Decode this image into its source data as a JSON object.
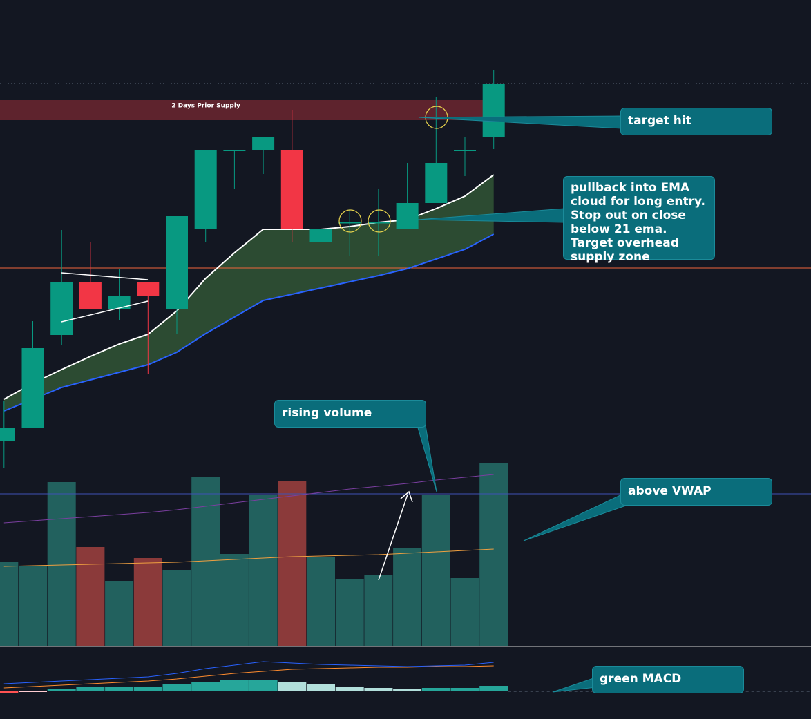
{
  "chart_data": [
    {
      "type": "candlestick",
      "open": [
        6.2,
        8.0,
        21.5,
        29.2,
        25.3,
        29.2,
        25.3,
        36.8,
        48.3,
        48.3,
        48.3,
        34.9,
        37.8,
        37.8,
        36.8,
        40.6,
        48.3,
        50.2
      ],
      "high": [
        12.0,
        23.5,
        36.7,
        34.9,
        31.0,
        29.2,
        38.7,
        48.3,
        48.3,
        50.2,
        54.1,
        42.7,
        39.7,
        42.7,
        46.4,
        56.0,
        50.2,
        59.8
      ],
      "low": [
        2.2,
        8.0,
        20.0,
        25.3,
        23.7,
        15.8,
        21.6,
        35.0,
        42.7,
        44.8,
        35.0,
        33.0,
        33.0,
        33.0,
        36.8,
        40.6,
        44.5,
        48.4
      ],
      "close": [
        8.0,
        19.6,
        29.2,
        25.3,
        27.1,
        27.1,
        38.7,
        48.3,
        48.3,
        50.2,
        36.8,
        36.8,
        37.8,
        37.8,
        40.6,
        46.4,
        48.3,
        57.9
      ],
      "up_color": "#089981",
      "down_color": "#f23645",
      "ylim": [
        0,
        70
      ],
      "series": [
        {
          "color": "#ffffff",
          "values": [
            12.2,
            14.5,
            16.5,
            18.4,
            20.2,
            21.6,
            25.0,
            29.7,
            33.4,
            36.8,
            36.8,
            36.8,
            37.2,
            37.8,
            38.2,
            39.8,
            41.6,
            44.7
          ]
        },
        {
          "color": "#2962ff",
          "values": [
            10.5,
            12.2,
            13.9,
            15.0,
            16.1,
            17.2,
            19.0,
            21.7,
            24.1,
            26.5,
            27.4,
            28.3,
            29.2,
            30.1,
            31.1,
            32.5,
            33.9,
            36.1
          ]
        }
      ],
      "cloud_color": "rgba(76,140,70,0.45)",
      "zones": [
        {
          "label": "2 Days Prior Supply",
          "range": [
            52.6,
            55.5
          ],
          "color": "rgba(120,40,50,0.75)"
        }
      ],
      "hlines": [
        {
          "value": 31.2,
          "color": "#f0643c",
          "style": "solid"
        },
        {
          "value": 57.9,
          "color": "#5d6a7a",
          "style": "dotted"
        }
      ],
      "annotations": [
        "target hit",
        "pullback into EMA cloud for long entry. Stop out on close below 21 ema. Target overhead supply zone"
      ]
    },
    {
      "type": "bar",
      "values": [
        121,
        115,
        237,
        143,
        94,
        127,
        110,
        245,
        133,
        219,
        238,
        128,
        97,
        103,
        141,
        218,
        98,
        265
      ],
      "up_color": "#22615e",
      "down_color": "#8b3a3a",
      "ylim": [
        0,
        300
      ],
      "series": [
        {
          "color": "#f0a040",
          "values": [
            115,
            116,
            117,
            118,
            119,
            120,
            121,
            123,
            125,
            127,
            129,
            130,
            131,
            132,
            134,
            136,
            138,
            140
          ]
        },
        {
          "color": "#7b3fa0",
          "values": [
            178,
            181,
            184,
            187,
            190,
            193,
            197,
            202,
            207,
            212,
            217,
            222,
            227,
            231,
            235,
            240,
            244,
            248
          ]
        }
      ],
      "hlines": [
        {
          "value": 220,
          "color": "#3f51b5",
          "style": "solid"
        }
      ],
      "annotations": [
        "rising volume",
        "above VWAP"
      ]
    },
    {
      "type": "macd",
      "values": [
        -3,
        -1,
        4,
        6,
        7,
        7,
        10,
        14,
        16,
        17,
        13,
        10,
        7,
        5,
        4,
        5,
        5,
        8
      ],
      "ylim": [
        -40,
        60
      ],
      "series": [
        {
          "color": "#2962ff",
          "values": [
            11,
            13,
            15,
            17,
            19,
            21,
            26,
            33,
            38,
            43,
            41,
            39,
            38,
            37,
            36,
            37,
            38,
            42
          ]
        },
        {
          "color": "#ff8c2e",
          "values": [
            5,
            7,
            9,
            11,
            13,
            15,
            18,
            22,
            26,
            29,
            32,
            33,
            34,
            35,
            35,
            36,
            36,
            37
          ]
        }
      ],
      "hlines": [
        {
          "value": 0,
          "color": "#5d6a7a",
          "style": "dashed"
        }
      ],
      "annotations": [
        "green MACD"
      ]
    }
  ]
}
